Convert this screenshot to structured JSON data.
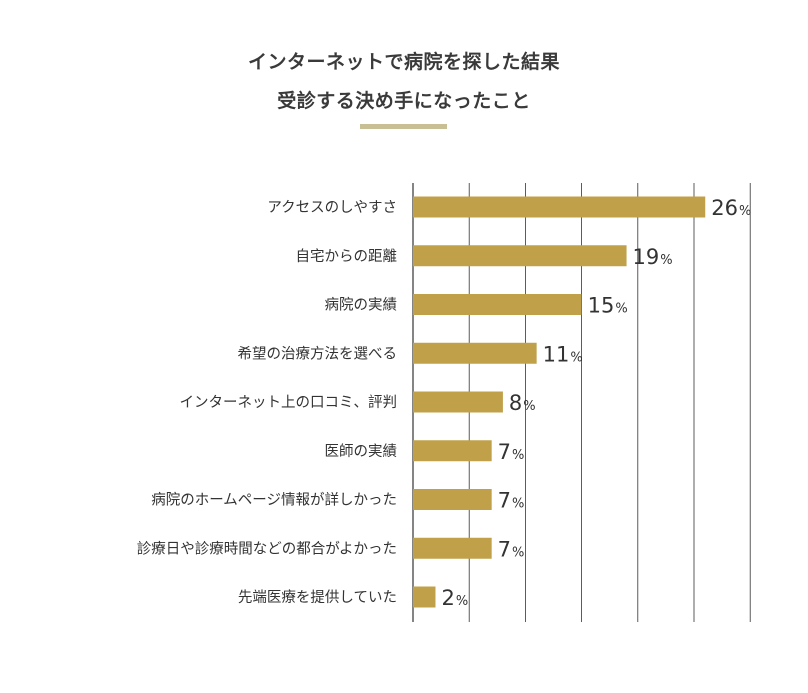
{
  "chart_data": {
    "type": "bar",
    "orientation": "horizontal",
    "title": [
      "インターネットで病院を探した結果",
      "受診する決め手になったこと"
    ],
    "categories": [
      "アクセスのしやすさ",
      "自宅からの距離",
      "病院の実績",
      "希望の治療方法を選べる",
      "インターネット上の口コミ、評判",
      "医師の実績",
      "病院のホームページ情報が詳しかった",
      "診療日や診療時間などの都合がよかった",
      "先端医療を提供していた"
    ],
    "values": [
      26,
      19,
      15,
      11,
      8,
      7,
      7,
      7,
      2
    ],
    "value_unit": "%",
    "xlim": [
      0,
      30
    ],
    "grid": true,
    "bar_color": "#c0a14a",
    "grid_color": "#333333",
    "accent_color": "#c8bf94"
  }
}
